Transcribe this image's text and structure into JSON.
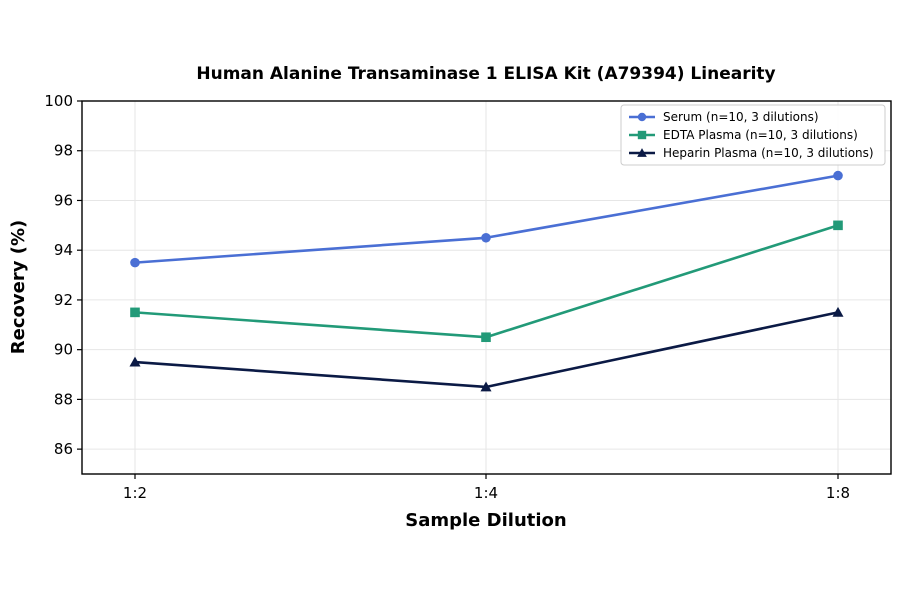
{
  "chart_data": {
    "type": "line",
    "title": "Human Alanine Transaminase 1 ELISA Kit (A79394) Linearity",
    "xlabel": "Sample Dilution",
    "ylabel": "Recovery (%)",
    "categories": [
      "1:2",
      "1:4",
      "1:8"
    ],
    "ylim": [
      85,
      100
    ],
    "yticks": [
      86,
      88,
      90,
      92,
      94,
      96,
      98,
      100
    ],
    "grid": true,
    "legend_position": "top-right",
    "series": [
      {
        "name": "Serum (n=10, 3 dilutions)",
        "values": [
          93.5,
          94.5,
          97.0
        ],
        "color": "#4a6fd4",
        "marker": "circle"
      },
      {
        "name": "EDTA Plasma (n=10, 3 dilutions)",
        "values": [
          91.5,
          90.5,
          95.0
        ],
        "color": "#229a78",
        "marker": "square"
      },
      {
        "name": "Heparin Plasma (n=10, 3 dilutions)",
        "values": [
          89.5,
          88.5,
          91.5
        ],
        "color": "#0b1a45",
        "marker": "triangle"
      }
    ]
  }
}
